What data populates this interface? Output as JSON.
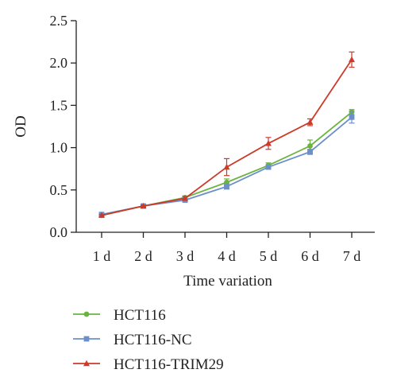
{
  "chart_data": {
    "type": "line",
    "title": "",
    "xlabel": "Time variation",
    "ylabel": "OD",
    "categories": [
      "1 d",
      "2 d",
      "3 d",
      "4 d",
      "5 d",
      "6 d",
      "7 d"
    ],
    "yticks": [
      "0.0",
      "0.5",
      "1.0",
      "1.5",
      "2.0",
      "2.5"
    ],
    "ylim": [
      0,
      2.5
    ],
    "grid": false,
    "legend_position": "bottom-left",
    "series": [
      {
        "name": "HCT116",
        "color": "#6ab43e",
        "marker": "circle",
        "values": [
          0.2,
          0.31,
          0.41,
          0.59,
          0.79,
          1.02,
          1.42
        ],
        "errors": [
          0.01,
          0.01,
          0.02,
          0.04,
          0.03,
          0.07,
          0.03
        ]
      },
      {
        "name": "HCT116-NC",
        "color": "#6b8fca",
        "marker": "square",
        "values": [
          0.21,
          0.31,
          0.38,
          0.54,
          0.77,
          0.95,
          1.36
        ],
        "errors": [
          0.01,
          0.01,
          0.02,
          0.03,
          0.02,
          0.03,
          0.07
        ]
      },
      {
        "name": "HCT116-TRIM29",
        "color": "#cc3a2a",
        "marker": "triangle",
        "values": [
          0.2,
          0.31,
          0.4,
          0.77,
          1.05,
          1.3,
          2.04
        ],
        "errors": [
          0.01,
          0.01,
          0.02,
          0.1,
          0.07,
          0.04,
          0.09
        ]
      }
    ]
  }
}
